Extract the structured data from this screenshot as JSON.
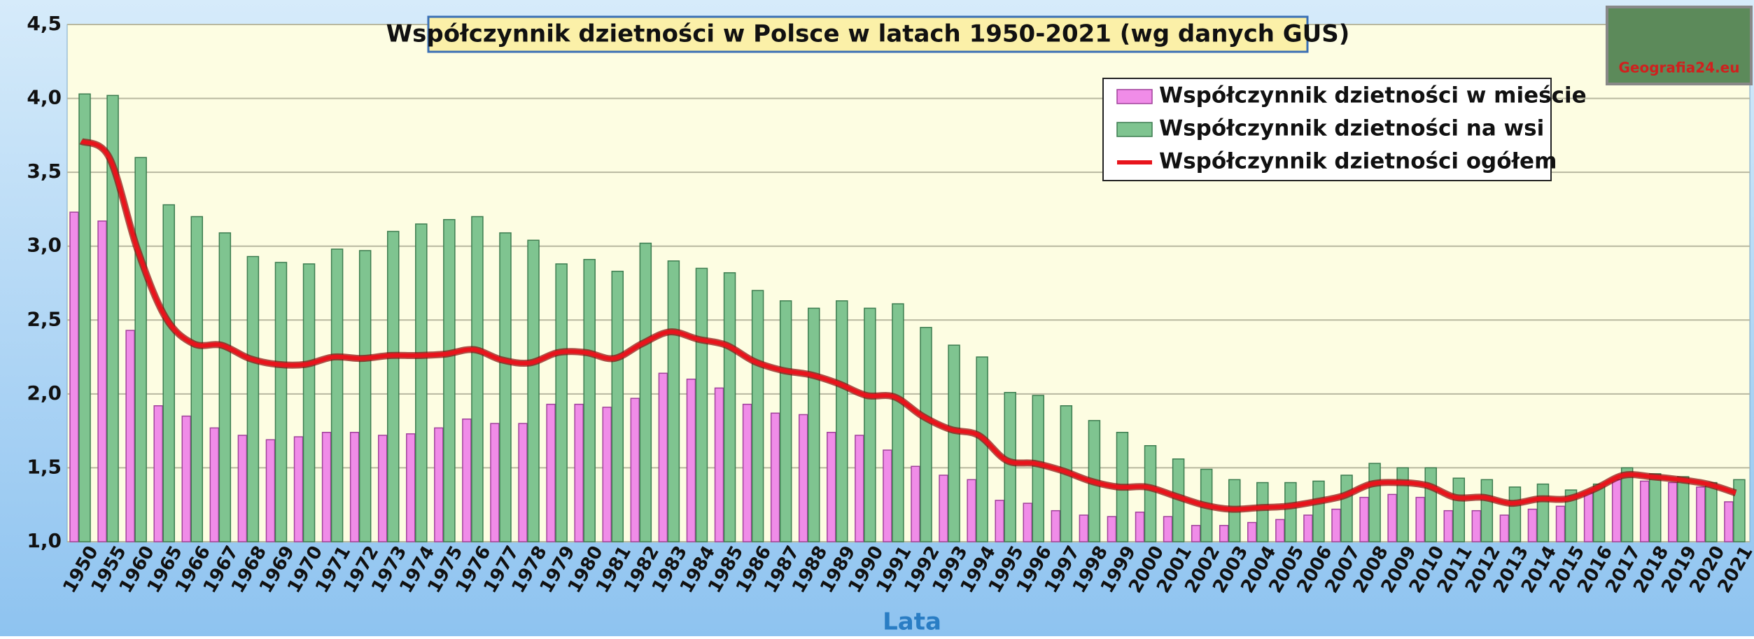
{
  "chart_data": {
    "type": "bar_line",
    "title": "Współczynnik dzietności w Polsce w latach 1950-2021 (wg danych GUS)",
    "x_label": "Lata",
    "watermark": "Geografia24.eu",
    "categories": [
      "1950",
      "1955",
      "1960",
      "1965",
      "1966",
      "1967",
      "1968",
      "1969",
      "1970",
      "1971",
      "1972",
      "1973",
      "1974",
      "1975",
      "1976",
      "1977",
      "1978",
      "1979",
      "1980",
      "1981",
      "1982",
      "1983",
      "1984",
      "1985",
      "1986",
      "1987",
      "1988",
      "1989",
      "1990",
      "1991",
      "1992",
      "1993",
      "1994",
      "1995",
      "1996",
      "1997",
      "1998",
      "1999",
      "2000",
      "2001",
      "2002",
      "2003",
      "2004",
      "2005",
      "2006",
      "2007",
      "2008",
      "2009",
      "2010",
      "2011",
      "2012",
      "2013",
      "2014",
      "2015",
      "2016",
      "2017",
      "2018",
      "2019",
      "2020",
      "2021"
    ],
    "series": [
      {
        "name": "Współczynnik dzietności w mieście",
        "kind": "bar",
        "color": "#f08ce8",
        "values": [
          3.23,
          3.17,
          2.43,
          1.92,
          1.85,
          1.77,
          1.72,
          1.69,
          1.71,
          1.74,
          1.74,
          1.72,
          1.73,
          1.77,
          1.83,
          1.8,
          1.8,
          1.93,
          1.93,
          1.91,
          1.97,
          2.14,
          2.1,
          2.04,
          1.93,
          1.87,
          1.86,
          1.74,
          1.72,
          1.62,
          1.51,
          1.45,
          1.42,
          1.28,
          1.26,
          1.21,
          1.18,
          1.17,
          1.2,
          1.17,
          1.11,
          1.11,
          1.13,
          1.15,
          1.18,
          1.22,
          1.3,
          1.32,
          1.3,
          1.21,
          1.21,
          1.18,
          1.22,
          1.24,
          1.33,
          1.42,
          1.41,
          1.4,
          1.37,
          1.27
        ]
      },
      {
        "name": "Współczynnik dzietności na wsi",
        "kind": "bar",
        "color": "#7fc490",
        "values": [
          4.03,
          4.02,
          3.6,
          3.28,
          3.2,
          3.09,
          2.93,
          2.89,
          2.88,
          2.98,
          2.97,
          3.1,
          3.15,
          3.18,
          3.2,
          3.09,
          3.04,
          2.88,
          2.91,
          2.83,
          3.02,
          2.9,
          2.85,
          2.82,
          2.7,
          2.63,
          2.58,
          2.63,
          2.58,
          2.61,
          2.45,
          2.33,
          2.25,
          2.01,
          1.99,
          1.92,
          1.82,
          1.74,
          1.65,
          1.56,
          1.49,
          1.42,
          1.4,
          1.4,
          1.41,
          1.45,
          1.53,
          1.5,
          1.5,
          1.43,
          1.42,
          1.37,
          1.39,
          1.35,
          1.39,
          1.5,
          1.46,
          1.44,
          1.4,
          1.42
        ]
      },
      {
        "name": "Współczynnik dzietności ogółem",
        "kind": "line",
        "color": "#e8141c",
        "values": [
          3.71,
          3.6,
          2.98,
          2.52,
          2.34,
          2.33,
          2.24,
          2.2,
          2.2,
          2.25,
          2.24,
          2.26,
          2.26,
          2.27,
          2.3,
          2.23,
          2.21,
          2.28,
          2.28,
          2.24,
          2.34,
          2.42,
          2.37,
          2.33,
          2.22,
          2.16,
          2.13,
          2.07,
          1.99,
          1.98,
          1.85,
          1.76,
          1.72,
          1.55,
          1.53,
          1.48,
          1.41,
          1.37,
          1.37,
          1.31,
          1.25,
          1.22,
          1.23,
          1.24,
          1.27,
          1.31,
          1.39,
          1.4,
          1.38,
          1.3,
          1.3,
          1.26,
          1.29,
          1.29,
          1.36,
          1.45,
          1.44,
          1.42,
          1.39,
          1.33
        ]
      }
    ],
    "ylim": [
      1.0,
      4.5
    ],
    "yticks": [
      {
        "value": 1.0,
        "label": "1,0"
      },
      {
        "value": 1.5,
        "label": "1,5"
      },
      {
        "value": 2.0,
        "label": "2,0"
      },
      {
        "value": 2.5,
        "label": "2,5"
      },
      {
        "value": 3.0,
        "label": "3,0"
      },
      {
        "value": 3.5,
        "label": "3,5"
      },
      {
        "value": 4.0,
        "label": "4,0"
      },
      {
        "value": 4.5,
        "label": "4,5"
      }
    ],
    "grid": true
  }
}
